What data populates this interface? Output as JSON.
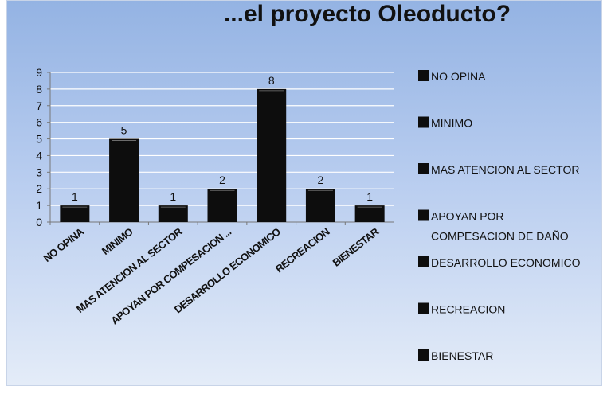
{
  "chart_data": {
    "type": "bar",
    "title": "...el proyecto Oleoducto?",
    "categories": [
      "NO OPINA",
      "MINIMO",
      "MAS ATENCION AL SECTOR",
      "APOYAN POR COMPESACION ...",
      "DESARROLLO ECONOMICO",
      "RECREACION",
      "BIENESTAR"
    ],
    "values": [
      1,
      5,
      1,
      2,
      8,
      2,
      1
    ],
    "ylim": [
      0,
      9
    ],
    "yticks": [
      0,
      1,
      2,
      3,
      4,
      5,
      6,
      7,
      8,
      9
    ],
    "grid": true,
    "legend_position": "right",
    "legend": [
      "NO OPINA",
      "MINIMO",
      "MAS ATENCION AL SECTOR",
      "APOYAN POR\nCOMPESACION DE DAÑO",
      "DESARROLLO ECONOMICO",
      "RECREACION",
      "BIENESTAR"
    ],
    "colors": {
      "bar": "#0d0d0d",
      "grid": "#ffffff",
      "axis": "#777777"
    }
  }
}
